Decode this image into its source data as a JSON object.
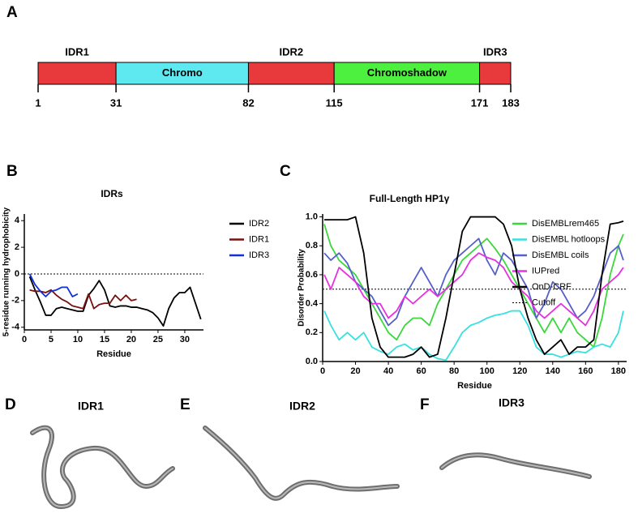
{
  "panel_labels": [
    "A",
    "B",
    "C",
    "D",
    "E",
    "F"
  ],
  "domain_map": {
    "ticks": [
      1,
      31,
      82,
      115,
      171,
      183
    ],
    "domains": [
      {
        "name": "IDR1",
        "color": "#e8393c",
        "label_inside": false
      },
      {
        "name": "Chromo",
        "color": "#5ee8f0",
        "label_inside": true
      },
      {
        "name": "IDR2",
        "color": "#e8393c",
        "label_inside": false
      },
      {
        "name": "Chromoshadow",
        "color": "#4ef040",
        "label_inside": true
      },
      {
        "name": "IDR3",
        "color": "#e8393c",
        "label_inside": false
      }
    ]
  },
  "chart_data": [
    {
      "type": "line",
      "title": "IDRs",
      "x_label": "Residue",
      "y_label": "5-residue running hydrophobicity",
      "x": [
        1,
        2,
        3,
        4,
        5,
        6,
        7,
        8,
        9,
        10,
        11,
        12,
        13,
        14,
        15,
        16,
        17,
        18,
        19,
        20,
        21,
        22,
        23,
        24,
        25,
        26,
        27,
        28,
        29,
        30,
        31,
        32,
        33
      ],
      "series": [
        {
          "name": "IDR2",
          "color": "#000000",
          "values": [
            -0.2,
            -1.2,
            -2.1,
            -3.1,
            -3.1,
            -2.6,
            -2.5,
            -2.6,
            -2.7,
            -2.8,
            -2.8,
            -1.6,
            -1.1,
            -0.5,
            -1.2,
            -2.4,
            -2.5,
            -2.4,
            -2.4,
            -2.5,
            -2.5,
            -2.6,
            -2.7,
            -2.9,
            -3.3,
            -3.9,
            -2.6,
            -1.8,
            -1.4,
            -1.4,
            -1.0,
            -2.2,
            -3.4
          ]
        },
        {
          "name": "IDR1",
          "color": "#7a1010",
          "values": [
            -1.2,
            -1.3,
            -1.3,
            -1.4,
            -1.2,
            -1.6,
            -1.9,
            -2.1,
            -2.4,
            -2.5,
            -2.6,
            -1.5,
            -2.6,
            -2.3,
            -2.2,
            -2.2,
            -1.6,
            -2.0,
            -1.6,
            -2.0,
            -1.9,
            null,
            null,
            null,
            null,
            null,
            null,
            null,
            null,
            null,
            null,
            null,
            null
          ]
        },
        {
          "name": "IDR3",
          "color": "#1030d8",
          "values": [
            0,
            -0.8,
            -1.3,
            -1.7,
            -1.3,
            -1.2,
            -1.0,
            -1.0,
            -1.7,
            -1.5,
            null,
            null,
            null,
            null,
            null,
            null,
            null,
            null,
            null,
            null,
            null,
            null,
            null,
            null,
            null,
            null,
            null,
            null,
            null,
            null,
            null,
            null,
            null
          ]
        }
      ],
      "xlim": [
        0,
        33.5
      ],
      "xticks": [
        0,
        5,
        10,
        15,
        20,
        25,
        30
      ],
      "ylim": [
        -4.2,
        4.5
      ],
      "yticks": [
        4,
        2,
        0,
        -2,
        -4
      ],
      "reference_line": {
        "value": 0,
        "style": "dotted"
      },
      "legend": "right"
    },
    {
      "type": "line",
      "title": "Full-Length HP1γ",
      "x_label": "Residue",
      "y_label": "Disorder Probability",
      "x": [
        1,
        5,
        10,
        15,
        20,
        25,
        30,
        35,
        40,
        45,
        50,
        55,
        60,
        65,
        70,
        75,
        80,
        85,
        90,
        95,
        100,
        105,
        110,
        115,
        120,
        125,
        130,
        135,
        140,
        145,
        150,
        155,
        160,
        165,
        170,
        175,
        180,
        183
      ],
      "series": [
        {
          "name": "DisEMBLrem465",
          "color": "#3ad83a",
          "values": [
            0.95,
            0.8,
            0.7,
            0.65,
            0.6,
            0.5,
            0.4,
            0.3,
            0.2,
            0.15,
            0.25,
            0.3,
            0.3,
            0.25,
            0.4,
            0.5,
            0.6,
            0.7,
            0.75,
            0.8,
            0.85,
            0.78,
            0.7,
            0.6,
            0.5,
            0.4,
            0.3,
            0.2,
            0.3,
            0.2,
            0.3,
            0.2,
            0.15,
            0.1,
            0.3,
            0.6,
            0.8,
            0.88
          ]
        },
        {
          "name": "DisEMBL hotloops",
          "color": "#38e0e0",
          "values": [
            0.35,
            0.25,
            0.15,
            0.2,
            0.15,
            0.2,
            0.1,
            0.07,
            0.05,
            0.1,
            0.12,
            0.08,
            0.1,
            0.05,
            0.02,
            0.01,
            0.1,
            0.2,
            0.25,
            0.27,
            0.3,
            0.32,
            0.33,
            0.35,
            0.35,
            0.25,
            0.1,
            0.05,
            0.05,
            0.03,
            0.05,
            0.07,
            0.06,
            0.1,
            0.12,
            0.1,
            0.2,
            0.35
          ]
        },
        {
          "name": "DisEMBL coils",
          "color": "#5560c8",
          "values": [
            0.75,
            0.7,
            0.75,
            0.68,
            0.55,
            0.5,
            0.45,
            0.35,
            0.25,
            0.3,
            0.45,
            0.55,
            0.65,
            0.55,
            0.45,
            0.6,
            0.7,
            0.75,
            0.8,
            0.85,
            0.7,
            0.6,
            0.75,
            0.7,
            0.6,
            0.5,
            0.3,
            0.4,
            0.55,
            0.5,
            0.4,
            0.3,
            0.35,
            0.45,
            0.6,
            0.75,
            0.8,
            0.7
          ]
        },
        {
          "name": "IUPred",
          "color": "#e830e0",
          "values": [
            0.6,
            0.5,
            0.65,
            0.6,
            0.55,
            0.45,
            0.4,
            0.4,
            0.3,
            0.35,
            0.45,
            0.4,
            0.45,
            0.5,
            0.45,
            0.5,
            0.55,
            0.6,
            0.7,
            0.75,
            0.72,
            0.7,
            0.65,
            0.55,
            0.5,
            0.45,
            0.35,
            0.3,
            0.35,
            0.4,
            0.35,
            0.3,
            0.25,
            0.35,
            0.5,
            0.55,
            0.6,
            0.65
          ]
        },
        {
          "name": "OnD-CRF",
          "color": "#000000",
          "values": [
            0.98,
            0.98,
            0.98,
            0.98,
            1.0,
            0.75,
            0.3,
            0.1,
            0.03,
            0.03,
            0.03,
            0.05,
            0.1,
            0.03,
            0.05,
            0.3,
            0.6,
            0.9,
            1.0,
            1.0,
            1.0,
            1.0,
            0.95,
            0.8,
            0.5,
            0.3,
            0.15,
            0.05,
            0.1,
            0.15,
            0.05,
            0.1,
            0.1,
            0.15,
            0.6,
            0.95,
            0.96,
            0.97
          ]
        }
      ],
      "xlim": [
        0,
        185
      ],
      "xticks": [
        0,
        20,
        40,
        60,
        80,
        100,
        120,
        140,
        160,
        180
      ],
      "ylim": [
        0,
        1.02
      ],
      "yticks": [
        {
          "value": 0,
          "label": "0.0"
        },
        0.2,
        0.4,
        0.6,
        0.8,
        {
          "value": 1,
          "label": "1.0"
        }
      ],
      "reference_line": {
        "name": "Cutoff",
        "value": 0.5,
        "style": "dotted"
      },
      "legend": "right"
    }
  ],
  "structures": [
    "IDR1",
    "IDR2",
    "IDR3"
  ]
}
